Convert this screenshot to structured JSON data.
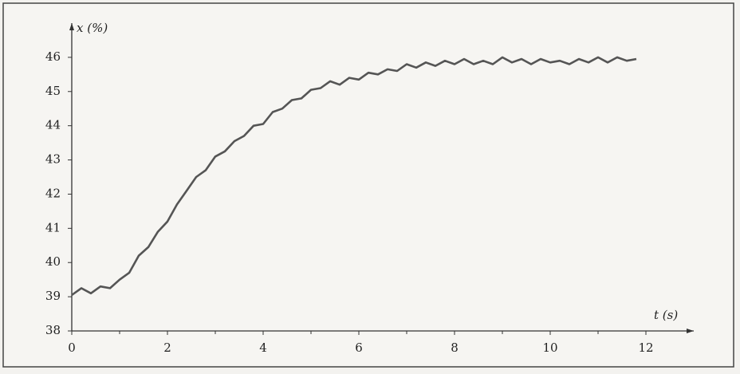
{
  "chart_data": {
    "type": "line",
    "x_label": "t (s)",
    "y_label": "x (%)",
    "x": [
      0,
      0.2,
      0.4,
      0.6,
      0.8,
      1.0,
      1.2,
      1.4,
      1.6,
      1.8,
      2.0,
      2.2,
      2.4,
      2.6,
      2.8,
      3.0,
      3.2,
      3.4,
      3.6,
      3.8,
      4.0,
      4.2,
      4.4,
      4.6,
      4.8,
      5.0,
      5.2,
      5.4,
      5.6,
      5.8,
      6.0,
      6.2,
      6.4,
      6.6,
      6.8,
      7.0,
      7.2,
      7.4,
      7.6,
      7.8,
      8.0,
      8.2,
      8.4,
      8.6,
      8.8,
      9.0,
      9.2,
      9.4,
      9.6,
      9.8,
      10.0,
      10.2,
      10.4,
      10.6,
      10.8,
      11.0,
      11.2,
      11.4,
      11.6,
      11.8
    ],
    "values": [
      39.05,
      39.25,
      39.1,
      39.3,
      39.25,
      39.5,
      39.7,
      40.2,
      40.45,
      40.9,
      41.2,
      41.7,
      42.1,
      42.5,
      42.7,
      43.1,
      43.25,
      43.55,
      43.7,
      44.0,
      44.05,
      44.4,
      44.5,
      44.75,
      44.8,
      45.05,
      45.1,
      45.3,
      45.2,
      45.4,
      45.35,
      45.55,
      45.5,
      45.65,
      45.6,
      45.8,
      45.7,
      45.85,
      45.75,
      45.9,
      45.8,
      45.95,
      45.8,
      45.9,
      45.8,
      46.0,
      45.85,
      45.95,
      45.8,
      45.95,
      45.85,
      45.9,
      45.8,
      45.95,
      45.85,
      46.0,
      45.85,
      46.0,
      45.9,
      45.95
    ],
    "color": "#555555",
    "xlim": [
      0,
      13
    ],
    "ylim": [
      38,
      47
    ],
    "xticks": [
      0,
      2,
      4,
      6,
      8,
      10,
      12
    ],
    "yticks": [
      38,
      39,
      40,
      41,
      42,
      43,
      44,
      45,
      46
    ]
  }
}
